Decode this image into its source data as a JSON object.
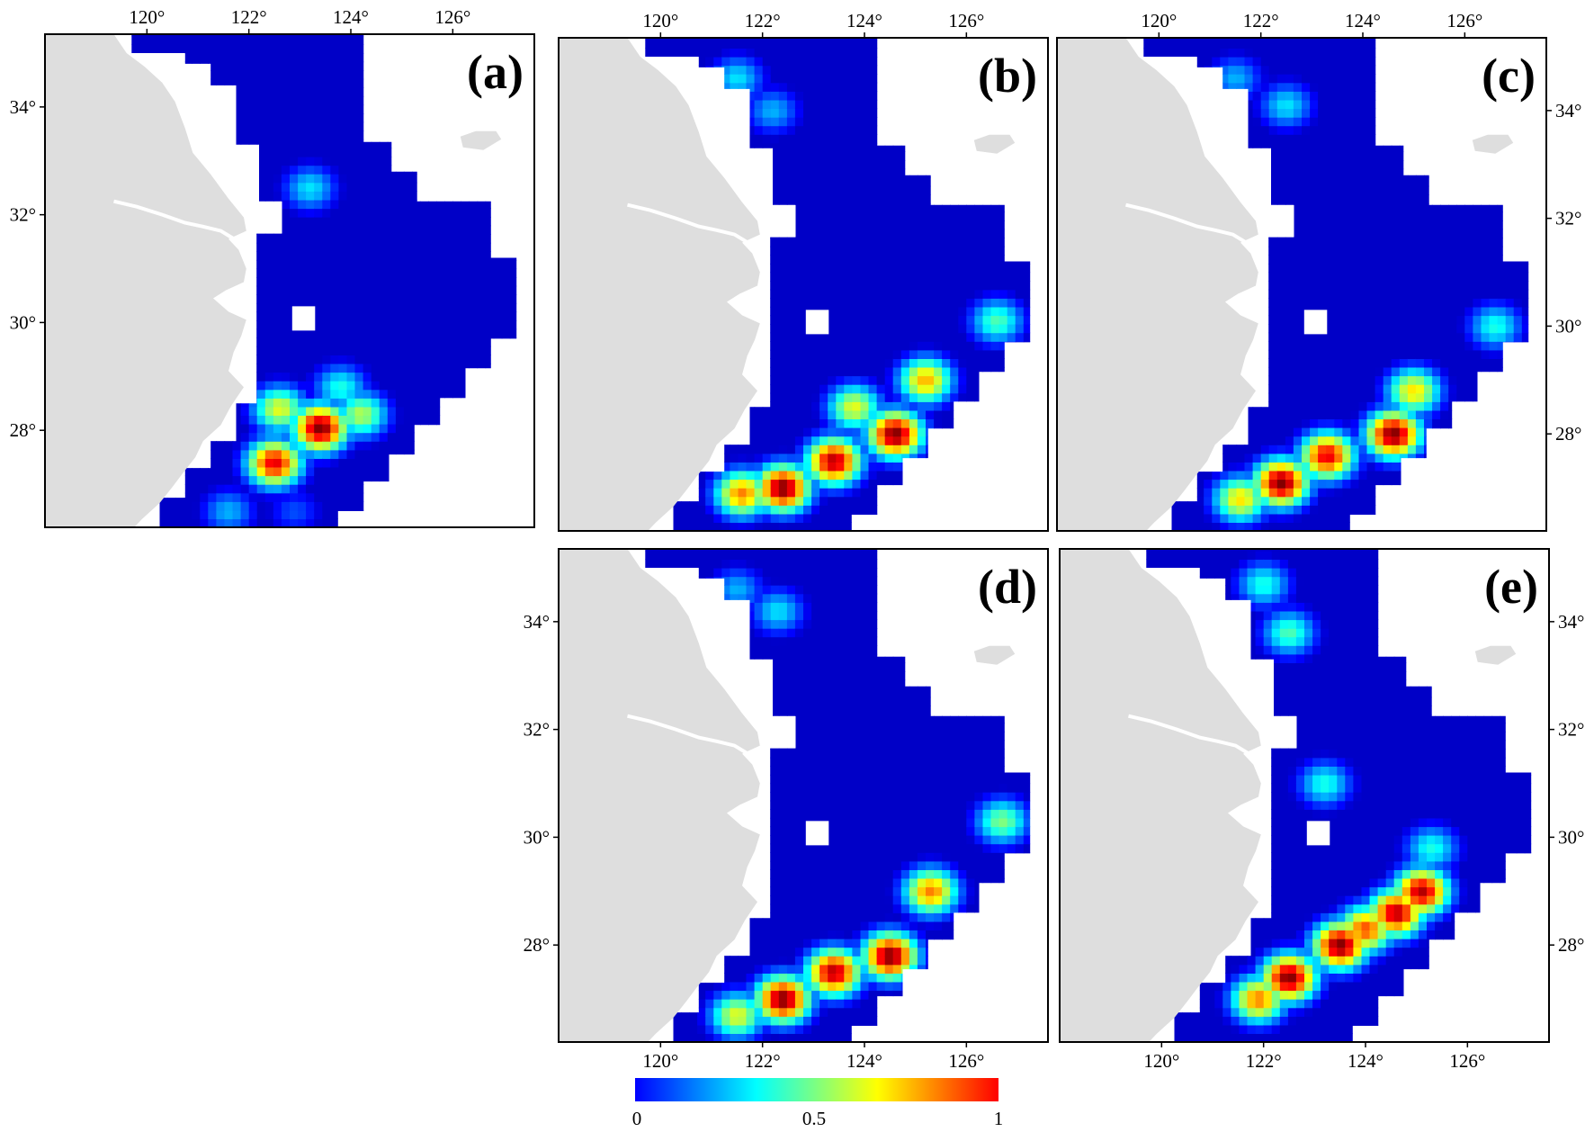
{
  "figure": {
    "panels": [
      {
        "id": "a",
        "label": "(a)",
        "top_ticks": [
          "120°",
          "122°",
          "124°",
          "126°"
        ],
        "bottom_ticks": [],
        "left_ticks": [
          "34°",
          "32°",
          "30°",
          "28°"
        ],
        "right_ticks": [],
        "hotspots": [
          {
            "lon": 123.4,
            "lat": 28.05,
            "value": 1.0
          },
          {
            "lon": 122.5,
            "lat": 27.4,
            "value": 0.9
          },
          {
            "lon": 122.6,
            "lat": 28.4,
            "value": 0.6
          },
          {
            "lon": 124.2,
            "lat": 28.3,
            "value": 0.55
          },
          {
            "lon": 123.8,
            "lat": 28.8,
            "value": 0.4
          },
          {
            "lon": 123.2,
            "lat": 32.5,
            "value": 0.35
          },
          {
            "lon": 121.6,
            "lat": 26.5,
            "value": 0.3
          },
          {
            "lon": 122.9,
            "lat": 26.5,
            "value": 0.2
          }
        ]
      },
      {
        "id": "b",
        "label": "(b)",
        "top_ticks": [
          "120°",
          "122°",
          "124°",
          "126°"
        ],
        "bottom_ticks": [],
        "left_ticks": [],
        "right_ticks": [],
        "hotspots": [
          {
            "lon": 124.6,
            "lat": 28.0,
            "value": 1.0
          },
          {
            "lon": 122.4,
            "lat": 27.0,
            "value": 1.0
          },
          {
            "lon": 123.4,
            "lat": 27.5,
            "value": 0.95
          },
          {
            "lon": 121.6,
            "lat": 26.9,
            "value": 0.75
          },
          {
            "lon": 125.2,
            "lat": 29.0,
            "value": 0.7
          },
          {
            "lon": 123.8,
            "lat": 28.5,
            "value": 0.6
          },
          {
            "lon": 126.6,
            "lat": 30.1,
            "value": 0.45
          },
          {
            "lon": 121.5,
            "lat": 34.6,
            "value": 0.35
          },
          {
            "lon": 122.2,
            "lat": 34.0,
            "value": 0.3
          }
        ]
      },
      {
        "id": "c",
        "label": "(c)",
        "top_ticks": [
          "120°",
          "122°",
          "124°",
          "126°"
        ],
        "bottom_ticks": [],
        "left_ticks": [],
        "right_ticks": [
          "34°",
          "32°",
          "30°",
          "28°"
        ],
        "hotspots": [
          {
            "lon": 124.6,
            "lat": 28.0,
            "value": 1.0
          },
          {
            "lon": 122.4,
            "lat": 27.1,
            "value": 1.0
          },
          {
            "lon": 123.3,
            "lat": 27.6,
            "value": 0.9
          },
          {
            "lon": 125.0,
            "lat": 28.8,
            "value": 0.65
          },
          {
            "lon": 121.6,
            "lat": 26.8,
            "value": 0.65
          },
          {
            "lon": 126.6,
            "lat": 30.0,
            "value": 0.4
          },
          {
            "lon": 122.5,
            "lat": 34.1,
            "value": 0.35
          },
          {
            "lon": 121.5,
            "lat": 34.6,
            "value": 0.3
          }
        ]
      },
      {
        "id": "d",
        "label": "(d)",
        "top_ticks": [],
        "bottom_ticks": [
          "120°",
          "122°",
          "124°",
          "126°"
        ],
        "left_ticks": [
          "34°",
          "32°",
          "30°",
          "28°"
        ],
        "right_ticks": [],
        "hotspots": [
          {
            "lon": 124.5,
            "lat": 27.8,
            "value": 1.0
          },
          {
            "lon": 122.4,
            "lat": 27.0,
            "value": 1.0
          },
          {
            "lon": 123.4,
            "lat": 27.5,
            "value": 0.95
          },
          {
            "lon": 125.3,
            "lat": 29.0,
            "value": 0.75
          },
          {
            "lon": 121.5,
            "lat": 26.7,
            "value": 0.6
          },
          {
            "lon": 126.7,
            "lat": 30.3,
            "value": 0.5
          },
          {
            "lon": 122.3,
            "lat": 34.2,
            "value": 0.35
          },
          {
            "lon": 121.5,
            "lat": 34.6,
            "value": 0.3
          }
        ]
      },
      {
        "id": "e",
        "label": "(e)",
        "top_ticks": [],
        "bottom_ticks": [
          "120°",
          "122°",
          "124°",
          "126°"
        ],
        "left_ticks": [],
        "right_ticks": [
          "34°",
          "32°",
          "30°",
          "28°"
        ],
        "hotspots": [
          {
            "lon": 123.5,
            "lat": 28.0,
            "value": 1.0
          },
          {
            "lon": 124.6,
            "lat": 28.6,
            "value": 0.95
          },
          {
            "lon": 125.1,
            "lat": 29.0,
            "value": 0.95
          },
          {
            "lon": 122.5,
            "lat": 27.4,
            "value": 1.0
          },
          {
            "lon": 121.9,
            "lat": 27.0,
            "value": 0.75
          },
          {
            "lon": 124.0,
            "lat": 28.3,
            "value": 0.8
          },
          {
            "lon": 125.3,
            "lat": 29.8,
            "value": 0.4
          },
          {
            "lon": 122.5,
            "lat": 33.8,
            "value": 0.45
          },
          {
            "lon": 123.2,
            "lat": 31.0,
            "value": 0.4
          },
          {
            "lon": 122.0,
            "lat": 34.7,
            "value": 0.4
          }
        ]
      }
    ],
    "colorbar": {
      "min_label": "0",
      "mid_label": "0.5",
      "max_label": "1",
      "stops": [
        "#0000ff",
        "#007fff",
        "#00ffff",
        "#7fff7f",
        "#ffff00",
        "#ff7f00",
        "#ff0000"
      ]
    },
    "colors": {
      "land": "#dedede",
      "water_outside": "#ffffff",
      "frame": "#000000"
    }
  }
}
